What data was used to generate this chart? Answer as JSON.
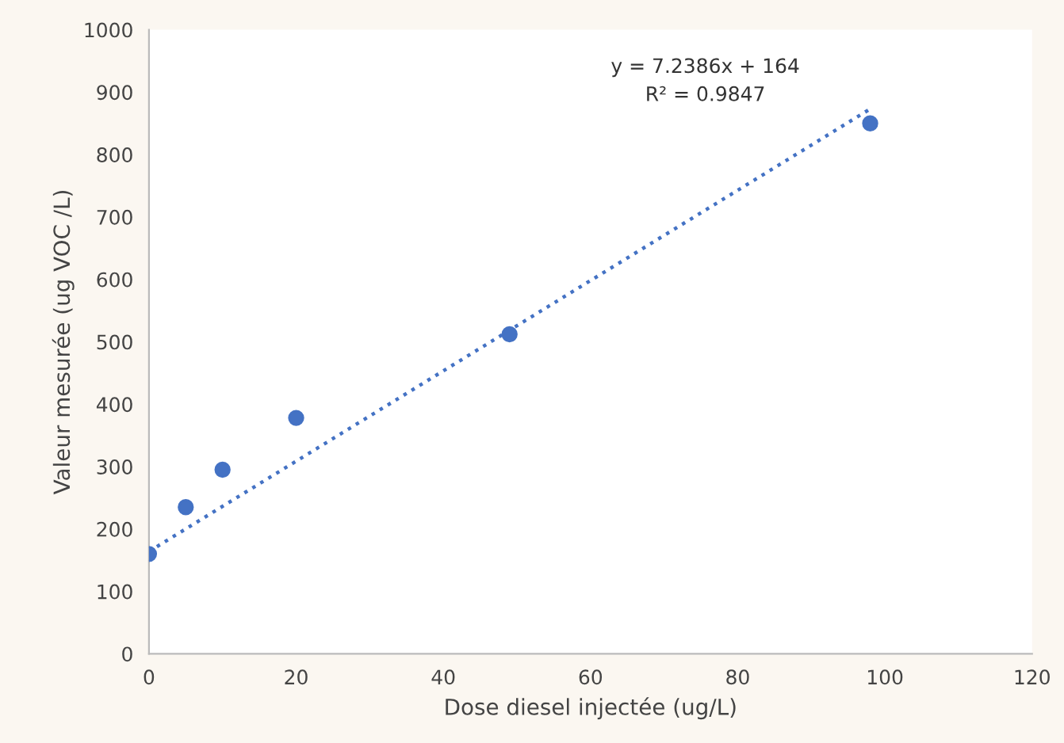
{
  "chart_data": {
    "type": "scatter",
    "xlabel": "Dose diesel injectée (ug/L)",
    "ylabel": "Valeur mesurée (ug VOC /L)",
    "x": [
      0,
      5,
      10,
      20,
      49,
      98
    ],
    "series": [
      {
        "color": "#4472c4",
        "values": [
          160,
          235,
          295,
          378,
          512,
          850
        ],
        "marker": "circle"
      },
      {
        "type": "line",
        "color": "#4472c4",
        "x": [
          0,
          98
        ],
        "values": [
          164,
          873
        ],
        "line_style": "dotted",
        "marker": "none"
      }
    ],
    "annotations": [
      "y = 7.2386x + 164",
      "R² = 0.9847"
    ],
    "xlim": [
      0,
      120
    ],
    "xticks": [
      0,
      20,
      40,
      60,
      80,
      100,
      120
    ],
    "ylim": [
      0,
      1000
    ],
    "yticks": [
      0,
      100,
      200,
      300,
      400,
      500,
      600,
      700,
      800,
      900,
      1000
    ],
    "grid": false,
    "legend": false
  }
}
